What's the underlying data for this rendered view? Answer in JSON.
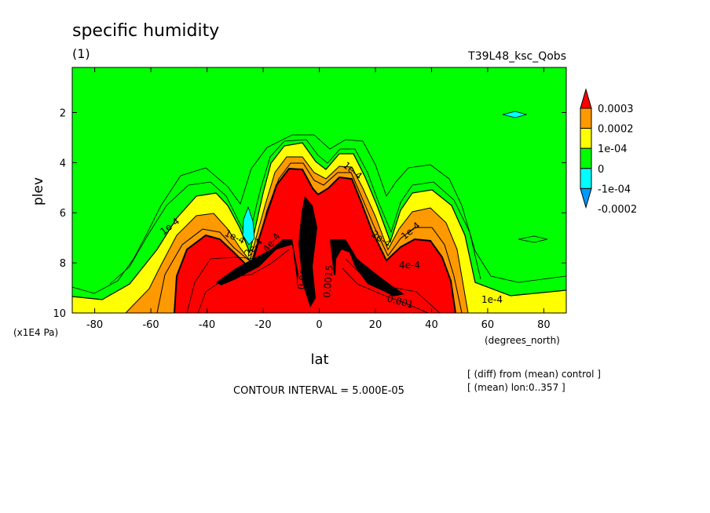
{
  "chart_data": {
    "type": "contour",
    "title": "specific humidity",
    "subtitle": "(1)",
    "run_name": "T39L48_ksc_Qobs",
    "xlabel": "lat",
    "xunits": "(degrees_north)",
    "ylabel": "plev",
    "yunits": "(x1E4 Pa)",
    "x_ticks": [
      "-80",
      "-60",
      "-40",
      "-20",
      "0",
      "20",
      "40",
      "60",
      "80"
    ],
    "y_ticks": [
      "2",
      "4",
      "6",
      "8",
      "10"
    ],
    "xlim": [
      -88,
      88
    ],
    "ylim": [
      10,
      0.2
    ],
    "contour_interval": "CONTOUR INTERVAL = 5.000E-05",
    "notes": [
      "[ (diff) from (mean) control ]",
      "[ (mean) lon:0..357 ]"
    ],
    "colorbar": {
      "labels": [
        "0.0003",
        "0.0002",
        "1e-04",
        "0",
        "-1e-04",
        "-0.0002"
      ],
      "colors": [
        "#ff0000",
        "#ff9900",
        "#ffff00",
        "#00ff00",
        "#00ffff",
        "#0099ff"
      ]
    },
    "contour_labels": [
      "1e-4",
      "1e-4",
      "1e-4",
      "1e-4",
      "1e-4",
      "2e-4",
      "2e-4",
      "4e-4",
      "4e-4",
      "0.001",
      "0.001",
      "0.0015"
    ]
  }
}
